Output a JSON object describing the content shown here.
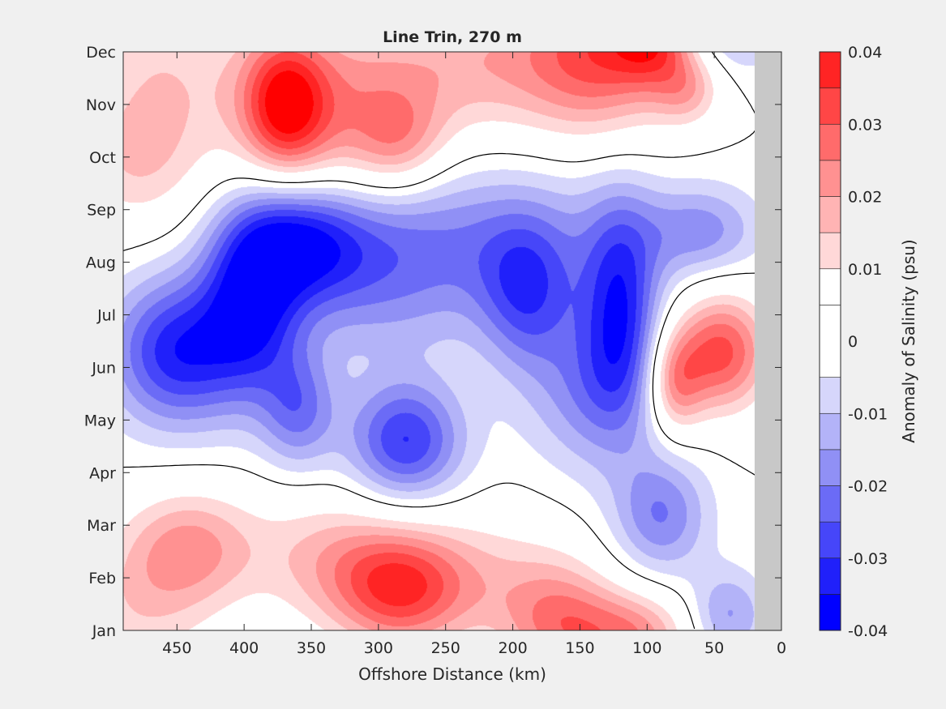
{
  "chart_data": {
    "type": "heatmap",
    "subtype": "filled-contour",
    "title": "Line Trin, 270 m",
    "xlabel": "Offshore Distance (km)",
    "xlim": [
      490,
      0
    ],
    "x_reversed": true,
    "x_ticks": [
      450,
      400,
      350,
      300,
      250,
      200,
      150,
      100,
      50,
      0
    ],
    "x_ticklabels": [
      "450",
      "400",
      "350",
      "300",
      "250",
      "200",
      "150",
      "100",
      "50",
      "0"
    ],
    "y_ticklabels": [
      "Jan",
      "Feb",
      "Mar",
      "Apr",
      "May",
      "Jun",
      "Jul",
      "Aug",
      "Sep",
      "Oct",
      "Nov",
      "Dec"
    ],
    "land_mask_x_range": [
      20,
      0
    ],
    "land_mask_color": "#c8c8c8",
    "zero_contour_color": "#000000",
    "colorbar": {
      "label": "Anomaly of Salinity (psu)",
      "limits": [
        -0.04,
        0.04
      ],
      "ticks": [
        0.04,
        0.03,
        0.02,
        0.01,
        0,
        -0.01,
        -0.02,
        -0.03,
        -0.04
      ],
      "ticklabels": [
        "0.04",
        "0.03",
        "0.02",
        "0.01",
        "0",
        "-0.01",
        "-0.02",
        "-0.03",
        "-0.04"
      ],
      "levels": [
        -0.04,
        -0.035,
        -0.03,
        -0.025,
        -0.02,
        -0.015,
        -0.01,
        -0.005,
        0.005,
        0.01,
        0.015,
        0.02,
        0.025,
        0.03,
        0.035,
        0.04
      ],
      "colors": [
        "#0000ff",
        "#2020fa",
        "#4646f9",
        "#6b6bf6",
        "#9090f5",
        "#b3b3f8",
        "#d6d6fb",
        "#ffffff",
        "#ffffff",
        "#ffd8d8",
        "#ffb4b4",
        "#ff9191",
        "#ff6b6b",
        "#ff4646",
        "#ff2424",
        "#ff0000"
      ]
    },
    "features": [
      {
        "x_km": 370,
        "month": 11.0,
        "value": 0.032,
        "sx_km": 22,
        "sm": 0.9
      },
      {
        "x_km": 335,
        "month": 10.8,
        "value": 0.018,
        "sx_km": 45,
        "sm": 1.3
      },
      {
        "x_km": 135,
        "month": 12.0,
        "value": 0.028,
        "sx_km": 40,
        "sm": 1.1
      },
      {
        "x_km": 95,
        "month": 12.3,
        "value": 0.026,
        "sx_km": 22,
        "sm": 0.6
      },
      {
        "x_km": 230,
        "month": 11.8,
        "value": 0.017,
        "sx_km": 60,
        "sm": 1.0
      },
      {
        "x_km": 285,
        "month": 10.3,
        "value": 0.016,
        "sx_km": 25,
        "sm": 0.7
      },
      {
        "x_km": 480,
        "month": 10.0,
        "value": 0.014,
        "sx_km": 35,
        "sm": 1.0
      },
      {
        "x_km": 470,
        "month": 12.1,
        "value": 0.004,
        "sx_km": 30,
        "sm": 0.8
      },
      {
        "x_km": 440,
        "month": 11.5,
        "value": 0.009,
        "sx_km": 50,
        "sm": 1.2
      },
      {
        "x_km": 70,
        "month": 11.3,
        "value": 0.015,
        "sx_km": 18,
        "sm": 0.5
      },
      {
        "x_km": 450,
        "month": 6.3,
        "value": -0.033,
        "sx_km": 35,
        "sm": 1.0
      },
      {
        "x_km": 395,
        "month": 7.2,
        "value": -0.03,
        "sx_km": 25,
        "sm": 1.2
      },
      {
        "x_km": 360,
        "month": 8.4,
        "value": -0.028,
        "sx_km": 35,
        "sm": 0.8
      },
      {
        "x_km": 280,
        "month": 4.6,
        "value": -0.03,
        "sx_km": 30,
        "sm": 0.8
      },
      {
        "x_km": 120,
        "month": 7.2,
        "value": -0.028,
        "sx_km": 20,
        "sm": 1.4
      },
      {
        "x_km": 190,
        "month": 7.4,
        "value": -0.022,
        "sx_km": 25,
        "sm": 1.0
      },
      {
        "x_km": 140,
        "month": 5.6,
        "value": -0.018,
        "sx_km": 35,
        "sm": 1.1
      },
      {
        "x_km": 300,
        "month": 7.9,
        "value": -0.018,
        "sx_km": 60,
        "sm": 1.2
      },
      {
        "x_km": 360,
        "month": 5.2,
        "value": -0.02,
        "sx_km": 20,
        "sm": 0.8
      },
      {
        "x_km": 200,
        "month": 8.5,
        "value": -0.012,
        "sx_km": 80,
        "sm": 1.0
      },
      {
        "x_km": 60,
        "month": 8.6,
        "value": -0.016,
        "sx_km": 30,
        "sm": 0.6
      },
      {
        "x_km": 90,
        "month": 3.2,
        "value": -0.02,
        "sx_km": 25,
        "sm": 0.8
      },
      {
        "x_km": 40,
        "month": 12.7,
        "value": -0.018,
        "sx_km": 30,
        "sm": 0.7
      },
      {
        "x_km": 40,
        "month": 1.3,
        "value": -0.016,
        "sx_km": 20,
        "sm": 0.6
      },
      {
        "x_km": 45,
        "month": 6.3,
        "value": 0.032,
        "sx_km": 25,
        "sm": 0.8
      },
      {
        "x_km": 80,
        "month": 5.7,
        "value": 0.022,
        "sx_km": 15,
        "sm": 0.7
      },
      {
        "x_km": 440,
        "month": 2.6,
        "value": 0.02,
        "sx_km": 35,
        "sm": 0.8
      },
      {
        "x_km": 285,
        "month": 1.8,
        "value": 0.03,
        "sx_km": 35,
        "sm": 0.8
      },
      {
        "x_km": 340,
        "month": 2.4,
        "value": 0.014,
        "sx_km": 40,
        "sm": 0.9
      },
      {
        "x_km": 165,
        "month": 1.1,
        "value": 0.022,
        "sx_km": 30,
        "sm": 0.8
      },
      {
        "x_km": 110,
        "month": 0.9,
        "value": 0.022,
        "sx_km": 30,
        "sm": 0.6
      },
      {
        "x_km": 220,
        "month": 2.0,
        "value": 0.012,
        "sx_km": 50,
        "sm": 0.9
      },
      {
        "x_km": 480,
        "month": 1.4,
        "value": 0.012,
        "sx_km": 40,
        "sm": 1.0
      }
    ]
  }
}
